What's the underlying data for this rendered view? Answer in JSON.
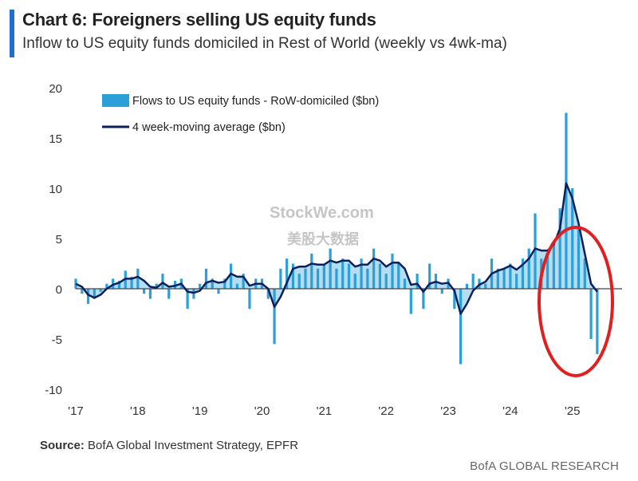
{
  "header": {
    "title": "Chart 6: Foreigners selling US equity funds",
    "subtitle": "Inflow to US equity funds domiciled in Rest of World (weekly vs 4wk-ma)"
  },
  "footer": {
    "source_label": "Source:",
    "source_text": " BofA Global Investment Strategy, EPFR",
    "brand": "BofA GLOBAL RESEARCH"
  },
  "watermark": {
    "line1": "StockWe.com",
    "line2": "美股大数据"
  },
  "colors": {
    "bars": "#2a9fd8",
    "line": "#0b1f5c",
    "accent": "#1f6fd1",
    "highlight_circle": "#e02020"
  },
  "chart_data": {
    "type": "bar",
    "xlabel": "",
    "ylabel": "",
    "ylim": [
      -10,
      20
    ],
    "yticks": [
      20,
      15,
      10,
      5,
      0,
      -5,
      -10
    ],
    "xlim": [
      2017,
      2025.8
    ],
    "xticks": [
      {
        "label": "'17",
        "value": 2017
      },
      {
        "label": "'18",
        "value": 2018
      },
      {
        "label": "'19",
        "value": 2019
      },
      {
        "label": "'20",
        "value": 2020
      },
      {
        "label": "'21",
        "value": 2021
      },
      {
        "label": "'22",
        "value": 2022
      },
      {
        "label": "'23",
        "value": 2023
      },
      {
        "label": "'24",
        "value": 2024
      },
      {
        "label": "'25",
        "value": 2025
      }
    ],
    "legend": {
      "position": "top-left",
      "entries": [
        {
          "name": "Flows to US equity funds - RoW-domiciled ($bn)",
          "kind": "bar"
        },
        {
          "name": "4 week-moving average ($bn)",
          "kind": "line"
        }
      ]
    },
    "series": [
      {
        "name": "Flows to US equity funds - RoW-domiciled ($bn)",
        "kind": "bar",
        "x": [
          2017.0,
          2017.1,
          2017.2,
          2017.3,
          2017.4,
          2017.5,
          2017.6,
          2017.7,
          2017.8,
          2017.9,
          2018.0,
          2018.1,
          2018.2,
          2018.3,
          2018.4,
          2018.5,
          2018.6,
          2018.7,
          2018.8,
          2018.9,
          2019.0,
          2019.1,
          2019.2,
          2019.3,
          2019.4,
          2019.5,
          2019.6,
          2019.7,
          2019.8,
          2019.9,
          2020.0,
          2020.1,
          2020.2,
          2020.3,
          2020.4,
          2020.5,
          2020.6,
          2020.7,
          2020.8,
          2020.9,
          2021.0,
          2021.1,
          2021.2,
          2021.3,
          2021.4,
          2021.5,
          2021.6,
          2021.7,
          2021.8,
          2021.9,
          2022.0,
          2022.1,
          2022.2,
          2022.3,
          2022.4,
          2022.5,
          2022.6,
          2022.7,
          2022.8,
          2022.9,
          2023.0,
          2023.1,
          2023.2,
          2023.3,
          2023.4,
          2023.5,
          2023.6,
          2023.7,
          2023.8,
          2023.9,
          2024.0,
          2024.1,
          2024.2,
          2024.3,
          2024.4,
          2024.5,
          2024.6,
          2024.7,
          2024.8,
          2024.9,
          2025.0,
          2025.1,
          2025.2,
          2025.3,
          2025.4
        ],
        "values": [
          1.0,
          -0.5,
          -1.5,
          -1.0,
          -0.3,
          0.5,
          1.0,
          0.8,
          1.8,
          1.2,
          2.0,
          -0.5,
          -1.0,
          0.5,
          1.5,
          -1.0,
          0.8,
          1.0,
          -2.0,
          -1.0,
          0.5,
          2.0,
          1.0,
          -0.5,
          1.0,
          2.5,
          0.5,
          1.5,
          -2.0,
          1.0,
          1.0,
          -1.0,
          -5.5,
          2.0,
          3.0,
          2.5,
          1.5,
          2.0,
          3.5,
          2.0,
          2.5,
          4.0,
          2.0,
          3.0,
          2.5,
          1.5,
          3.0,
          2.0,
          4.0,
          2.5,
          1.5,
          3.5,
          2.5,
          1.0,
          -2.5,
          1.5,
          -2.0,
          2.5,
          1.5,
          -0.5,
          1.0,
          -2.0,
          -7.5,
          0.5,
          1.5,
          1.0,
          0.5,
          3.0,
          2.0,
          2.0,
          2.5,
          1.5,
          3.0,
          4.0,
          7.5,
          3.0,
          3.5,
          4.5,
          8.0,
          17.5,
          10.0,
          6.0,
          3.0,
          -5.0,
          -6.5
        ]
      },
      {
        "name": "4 week-moving average ($bn)",
        "kind": "line",
        "x": [
          2017.0,
          2017.1,
          2017.2,
          2017.3,
          2017.4,
          2017.5,
          2017.6,
          2017.7,
          2017.8,
          2017.9,
          2018.0,
          2018.1,
          2018.2,
          2018.3,
          2018.4,
          2018.5,
          2018.6,
          2018.7,
          2018.8,
          2018.9,
          2019.0,
          2019.1,
          2019.2,
          2019.3,
          2019.4,
          2019.5,
          2019.6,
          2019.7,
          2019.8,
          2019.9,
          2020.0,
          2020.1,
          2020.2,
          2020.3,
          2020.4,
          2020.5,
          2020.6,
          2020.7,
          2020.8,
          2020.9,
          2021.0,
          2021.1,
          2021.2,
          2021.3,
          2021.4,
          2021.5,
          2021.6,
          2021.7,
          2021.8,
          2021.9,
          2022.0,
          2022.1,
          2022.2,
          2022.3,
          2022.4,
          2022.5,
          2022.6,
          2022.7,
          2022.8,
          2022.9,
          2023.0,
          2023.1,
          2023.2,
          2023.3,
          2023.4,
          2023.5,
          2023.6,
          2023.7,
          2023.8,
          2023.9,
          2024.0,
          2024.1,
          2024.2,
          2024.3,
          2024.4,
          2024.5,
          2024.6,
          2024.7,
          2024.8,
          2024.9,
          2025.0,
          2025.1,
          2025.2,
          2025.3,
          2025.4
        ],
        "values": [
          0.5,
          0.2,
          -0.6,
          -0.9,
          -0.6,
          0.0,
          0.4,
          0.6,
          1.0,
          1.0,
          1.2,
          0.8,
          0.2,
          0.1,
          0.6,
          0.2,
          0.3,
          0.5,
          -0.3,
          -0.4,
          -0.2,
          0.6,
          0.8,
          0.6,
          0.7,
          1.5,
          1.2,
          1.2,
          0.3,
          0.5,
          0.5,
          0.0,
          -1.8,
          -0.8,
          0.6,
          2.0,
          2.2,
          2.2,
          2.5,
          2.4,
          2.4,
          2.8,
          2.6,
          2.8,
          2.8,
          2.2,
          2.4,
          2.4,
          3.0,
          2.8,
          2.2,
          2.6,
          2.6,
          2.0,
          0.4,
          0.5,
          -0.3,
          0.5,
          0.7,
          0.5,
          0.6,
          -0.2,
          -2.5,
          -1.5,
          -0.2,
          0.4,
          0.7,
          1.5,
          1.8,
          2.0,
          2.3,
          1.9,
          2.4,
          3.0,
          4.0,
          3.8,
          3.8,
          4.4,
          6.0,
          10.5,
          9.0,
          6.5,
          3.5,
          0.5,
          -0.3
        ]
      }
    ]
  }
}
